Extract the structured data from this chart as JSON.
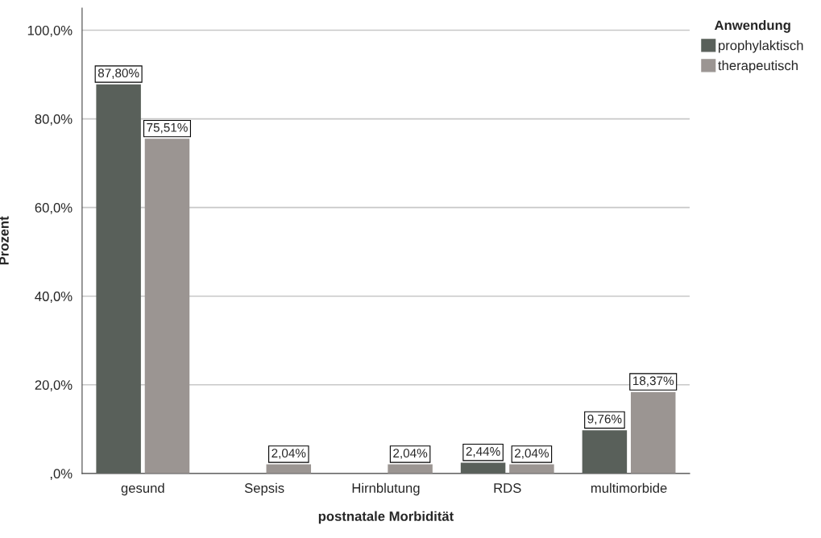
{
  "chart_data": {
    "type": "bar",
    "xlabel": "postnatale Morbidität",
    "ylabel": "Prozent",
    "legend_title": "Anwendung",
    "categories": [
      "gesund",
      "Sepsis",
      "Hirnblutung",
      "RDS",
      "multimorbide"
    ],
    "series": [
      {
        "name": "prophylaktisch",
        "color": "#59605a",
        "values": [
          87.8,
          0,
          0,
          2.44,
          9.76
        ],
        "value_labels": [
          "87,80%",
          null,
          null,
          "2,44%",
          "9,76%"
        ]
      },
      {
        "name": "therapeutisch",
        "color": "#9b9592",
        "values": [
          75.51,
          2.04,
          2.04,
          2.04,
          18.37
        ],
        "value_labels": [
          "75,51%",
          "2,04%",
          "2,04%",
          "2,04%",
          "18,37%"
        ]
      }
    ],
    "ylim": [
      0,
      105
    ],
    "yticks": [
      {
        "value": 0,
        "label": ",0%"
      },
      {
        "value": 20,
        "label": "20,0%"
      },
      {
        "value": 40,
        "label": "40,0%"
      },
      {
        "value": 60,
        "label": "60,0%"
      },
      {
        "value": 80,
        "label": "80,0%"
      },
      {
        "value": 100,
        "label": "100,0%"
      }
    ],
    "grid": "y",
    "legend": "top right"
  }
}
